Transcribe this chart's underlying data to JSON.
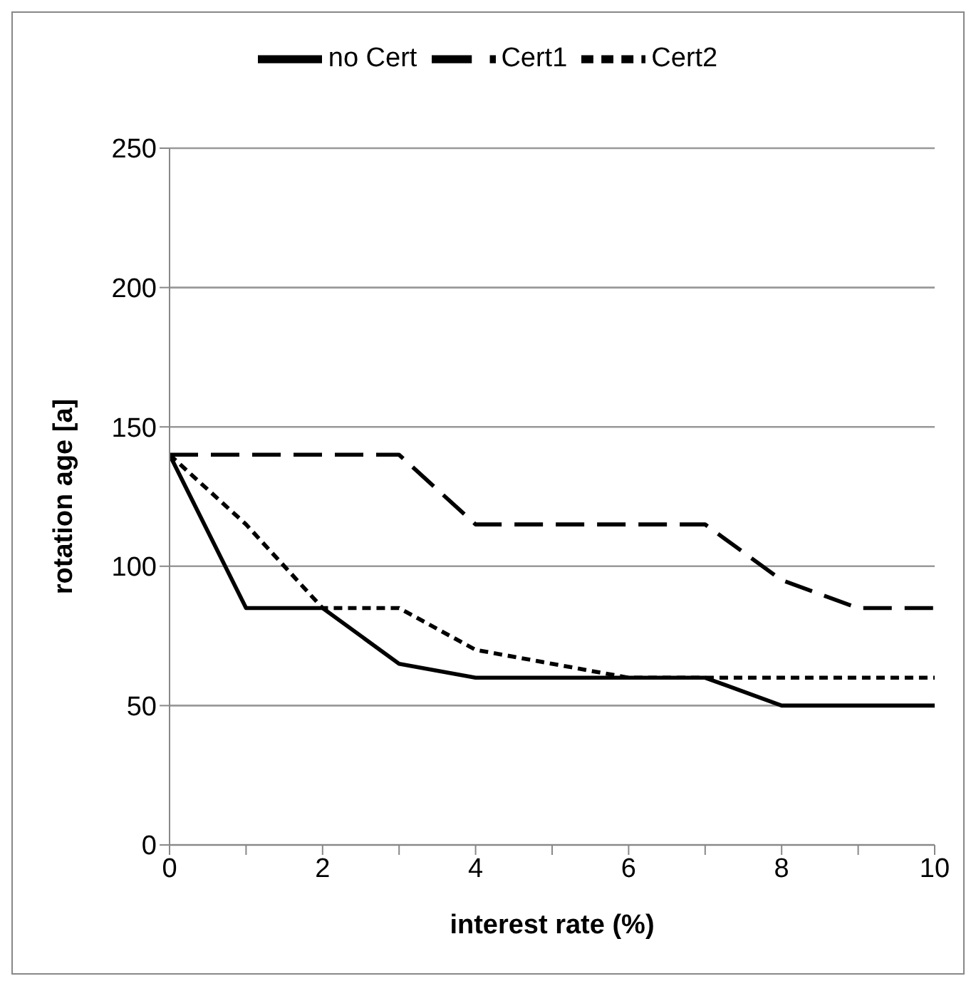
{
  "chart_data": {
    "type": "line",
    "xlabel": "interest rate (%)",
    "ylabel": "rotation age [a]",
    "x": [
      0,
      1,
      2,
      3,
      4,
      5,
      6,
      7,
      8,
      9,
      10
    ],
    "series": [
      {
        "name": "no Cert",
        "color": "#000000",
        "line_style": "solid",
        "values": [
          140,
          85,
          85,
          65,
          60,
          60,
          60,
          60,
          50,
          50,
          50
        ]
      },
      {
        "name": "Cert1",
        "color": "#000000",
        "line_style": "dashed",
        "values": [
          140,
          140,
          140,
          140,
          115,
          115,
          115,
          115,
          95,
          85,
          85
        ]
      },
      {
        "name": "Cert2",
        "color": "#000000",
        "line_style": "dotted",
        "values": [
          140,
          115,
          85,
          85,
          70,
          65,
          60,
          60,
          60,
          60,
          60
        ]
      }
    ],
    "xlim": [
      0,
      10
    ],
    "xticks": [
      0,
      {
        "value": 1,
        "label": null
      },
      2,
      {
        "value": 3,
        "label": null
      },
      4,
      {
        "value": 5,
        "label": null
      },
      6,
      {
        "value": 7,
        "label": null
      },
      8,
      {
        "value": 9,
        "label": null
      },
      10
    ],
    "ylim": [
      0,
      250
    ],
    "yticks": [
      0,
      50,
      100,
      150,
      200,
      250
    ],
    "grid": "y",
    "legend": "top",
    "marker": "none"
  }
}
